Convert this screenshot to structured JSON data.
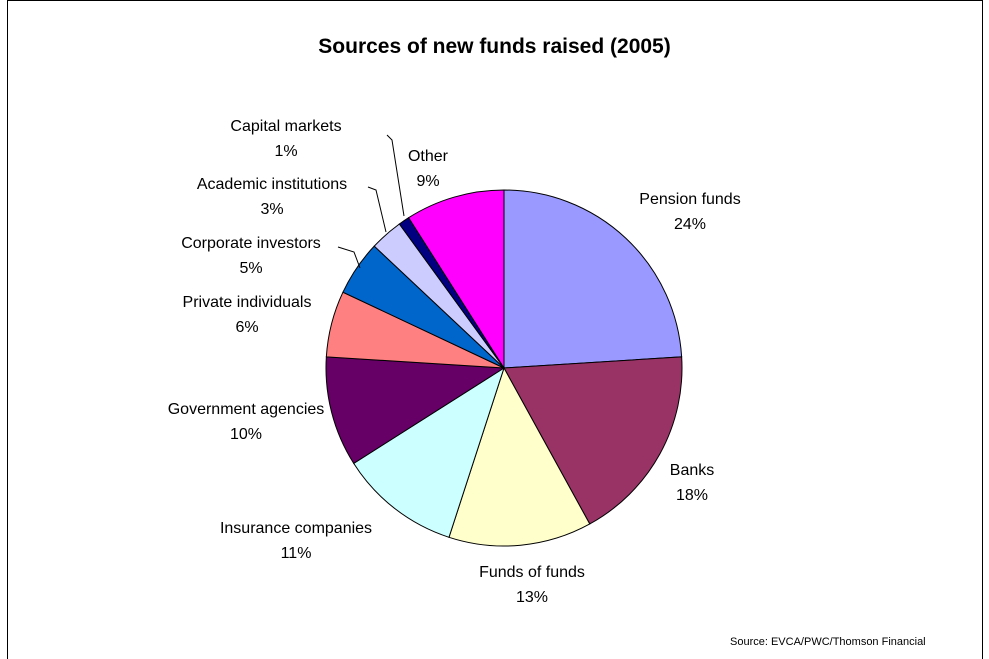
{
  "chart_data": {
    "type": "pie",
    "title": "Sources of new funds raised (2005)",
    "slices": [
      {
        "label": "Pension funds",
        "value": 24,
        "value_label": "24%",
        "color": "#9999FF"
      },
      {
        "label": "Banks",
        "value": 18,
        "value_label": "18%",
        "color": "#993366"
      },
      {
        "label": "Funds of funds",
        "value": 13,
        "value_label": "13%",
        "color": "#FFFFCC"
      },
      {
        "label": "Insurance companies",
        "value": 11,
        "value_label": "11%",
        "color": "#CCFFFF"
      },
      {
        "label": "Government agencies",
        "value": 10,
        "value_label": "10%",
        "color": "#660066"
      },
      {
        "label": "Private individuals",
        "value": 6,
        "value_label": "6%",
        "color": "#FF8080"
      },
      {
        "label": "Corporate investors",
        "value": 5,
        "value_label": "5%",
        "color": "#0066CC"
      },
      {
        "label": "Academic institutions",
        "value": 3,
        "value_label": "3%",
        "color": "#CCCCFF"
      },
      {
        "label": "Capital markets",
        "value": 1,
        "value_label": "1%",
        "color": "#000080"
      },
      {
        "label": "Other",
        "value": 9,
        "value_label": "9%",
        "color": "#FF00FF"
      }
    ],
    "source": "Source: EVCA/PWC/Thomson Financial"
  }
}
